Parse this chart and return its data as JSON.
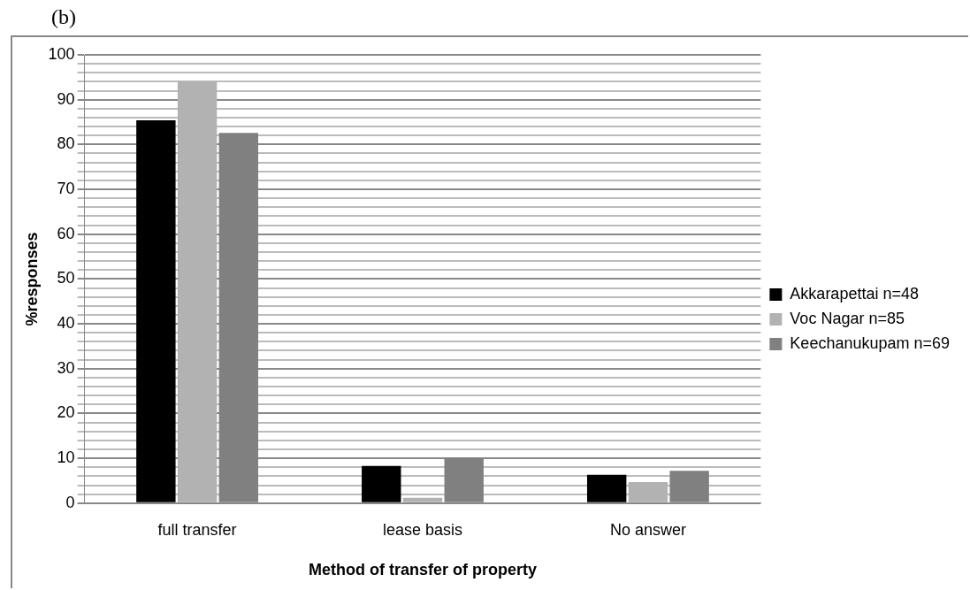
{
  "chart_data": {
    "type": "bar",
    "title": "(b)",
    "xlabel": "Method of transfer of property",
    "ylabel": "%responses",
    "categories": [
      "full transfer",
      "lease basis",
      "No answer"
    ],
    "series": [
      {
        "name": "Akkarapettai n=48",
        "color": "#000000",
        "values": [
          85.4,
          8.3,
          6.3
        ]
      },
      {
        "name": "Voc Nagar n=85",
        "color": "#b2b2b2",
        "values": [
          94.1,
          1.2,
          4.7
        ]
      },
      {
        "name": "Keechanukupam n=69",
        "color": "#808080",
        "values": [
          82.6,
          10.1,
          7.2
        ]
      }
    ],
    "ylim": [
      0,
      100
    ],
    "yticks": [
      0,
      {
        "value": 2,
        "label": null
      },
      {
        "value": 4,
        "label": null
      },
      {
        "value": 6,
        "label": null
      },
      {
        "value": 8,
        "label": null
      },
      10,
      {
        "value": 12,
        "label": null
      },
      {
        "value": 14,
        "label": null
      },
      {
        "value": 16,
        "label": null
      },
      {
        "value": 18,
        "label": null
      },
      20,
      {
        "value": 22,
        "label": null
      },
      {
        "value": 24,
        "label": null
      },
      {
        "value": 26,
        "label": null
      },
      {
        "value": 28,
        "label": null
      },
      30,
      {
        "value": 32,
        "label": null
      },
      {
        "value": 34,
        "label": null
      },
      {
        "value": 36,
        "label": null
      },
      {
        "value": 38,
        "label": null
      },
      40,
      {
        "value": 42,
        "label": null
      },
      {
        "value": 44,
        "label": null
      },
      {
        "value": 46,
        "label": null
      },
      {
        "value": 48,
        "label": null
      },
      50,
      {
        "value": 52,
        "label": null
      },
      {
        "value": 54,
        "label": null
      },
      {
        "value": 56,
        "label": null
      },
      {
        "value": 58,
        "label": null
      },
      60,
      {
        "value": 62,
        "label": null
      },
      {
        "value": 64,
        "label": null
      },
      {
        "value": 66,
        "label": null
      },
      {
        "value": 68,
        "label": null
      },
      70,
      {
        "value": 72,
        "label": null
      },
      {
        "value": 74,
        "label": null
      },
      {
        "value": 76,
        "label": null
      },
      {
        "value": 78,
        "label": null
      },
      80,
      {
        "value": 82,
        "label": null
      },
      {
        "value": 84,
        "label": null
      },
      {
        "value": 86,
        "label": null
      },
      {
        "value": 88,
        "label": null
      },
      90,
      {
        "value": 92,
        "label": null
      },
      {
        "value": 94,
        "label": null
      },
      {
        "value": 96,
        "label": null
      },
      {
        "value": 98,
        "label": null
      },
      100
    ],
    "grid": "y",
    "legend": "right"
  }
}
